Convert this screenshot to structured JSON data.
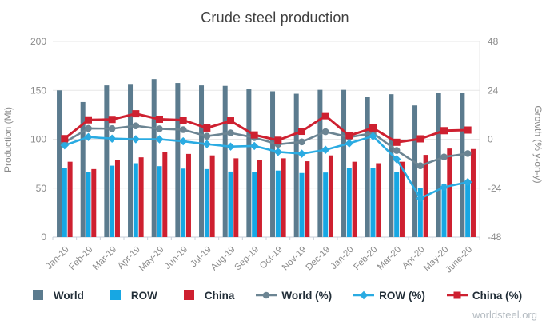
{
  "title": "Crude steel production",
  "watermark": "worldsteel.org",
  "colors": {
    "world_bar": "#5b7b8e",
    "row_bar": "#17a7e3",
    "china_bar": "#ce2030",
    "world_line": "#6c8593",
    "row_line": "#2aabe2",
    "china_line": "#ce2030",
    "grid": "#e7e7e7",
    "axis_line": "#c9cfda",
    "axis_text": "#8b8b8b",
    "title_text": "#3f3f3f",
    "legend_text": "#222e38",
    "watermark_text": "#b5bcc2"
  },
  "chart_data": {
    "type": "combo-bar-line",
    "title": "Crude steel production",
    "categories": [
      "Jan-19",
      "Feb-19",
      "Mar-19",
      "Apr-19",
      "May-19",
      "Jun-19",
      "Jul-19",
      "Aug-19",
      "Sep-19",
      "Oct-19",
      "Nov-19",
      "Dec-19",
      "Jan-20",
      "Feb-20",
      "Mar-20",
      "Apr-20",
      "May-20",
      "June-20"
    ],
    "bar_series": [
      {
        "name": "World",
        "color_key": "world_bar",
        "axis": "left",
        "values": [
          150,
          138,
          155,
          156.5,
          161.5,
          157.5,
          155,
          154.5,
          151,
          149,
          146.5,
          150.5,
          150.5,
          143,
          146,
          134.5,
          147,
          147.5
        ]
      },
      {
        "name": "ROW",
        "color_key": "row_bar",
        "axis": "left",
        "values": [
          70.5,
          66.5,
          73,
          75.5,
          72.5,
          70,
          69.5,
          67,
          66.5,
          68,
          65.5,
          66,
          70.5,
          71,
          66.5,
          50,
          54,
          57
        ]
      },
      {
        "name": "China",
        "color_key": "china_bar",
        "axis": "left",
        "values": [
          77,
          69.5,
          79,
          81.5,
          87,
          85,
          83.5,
          80.5,
          78.5,
          80.5,
          77.5,
          83.5,
          77,
          75.5,
          77,
          84,
          90.5,
          90
        ]
      }
    ],
    "line_series": [
      {
        "name": "World (%)",
        "marker": "circle",
        "color_key": "world_line",
        "axis": "right",
        "values": [
          -1.5,
          5.3,
          5.2,
          6.6,
          5.1,
          4.7,
          1.5,
          3.1,
          0.8,
          -2.5,
          -1.3,
          3.7,
          1.0,
          3.0,
          -5.5,
          -13.0,
          -8.7,
          -7.0
        ]
      },
      {
        "name": "ROW (%)",
        "marker": "diamond",
        "color_key": "row_line",
        "axis": "right",
        "values": [
          -3.0,
          1.1,
          0.3,
          0.0,
          0.0,
          -1.0,
          -2.4,
          -3.6,
          -3.3,
          -6.2,
          -7.1,
          -5.2,
          -2.0,
          1.5,
          -9.8,
          -29.0,
          -23.5,
          -21.0
        ]
      },
      {
        "name": "China (%)",
        "marker": "square",
        "color_key": "china_line",
        "axis": "right",
        "values": [
          0.3,
          9.5,
          9.7,
          12.5,
          9.8,
          9.4,
          5.5,
          9.0,
          2.1,
          -0.5,
          3.9,
          11.5,
          1.8,
          5.5,
          -1.5,
          0.2,
          4.2,
          4.5
        ]
      }
    ],
    "left_axis": {
      "label": "Production (Mt)",
      "ticks": [
        0,
        50,
        100,
        150,
        200
      ],
      "range": [
        0,
        200
      ]
    },
    "right_axis": {
      "label": "Growth (% y-on-y)",
      "ticks": [
        -48,
        -24,
        0,
        24,
        48
      ],
      "range": [
        -48,
        48
      ]
    },
    "grid": true,
    "legend_position": "bottom"
  }
}
